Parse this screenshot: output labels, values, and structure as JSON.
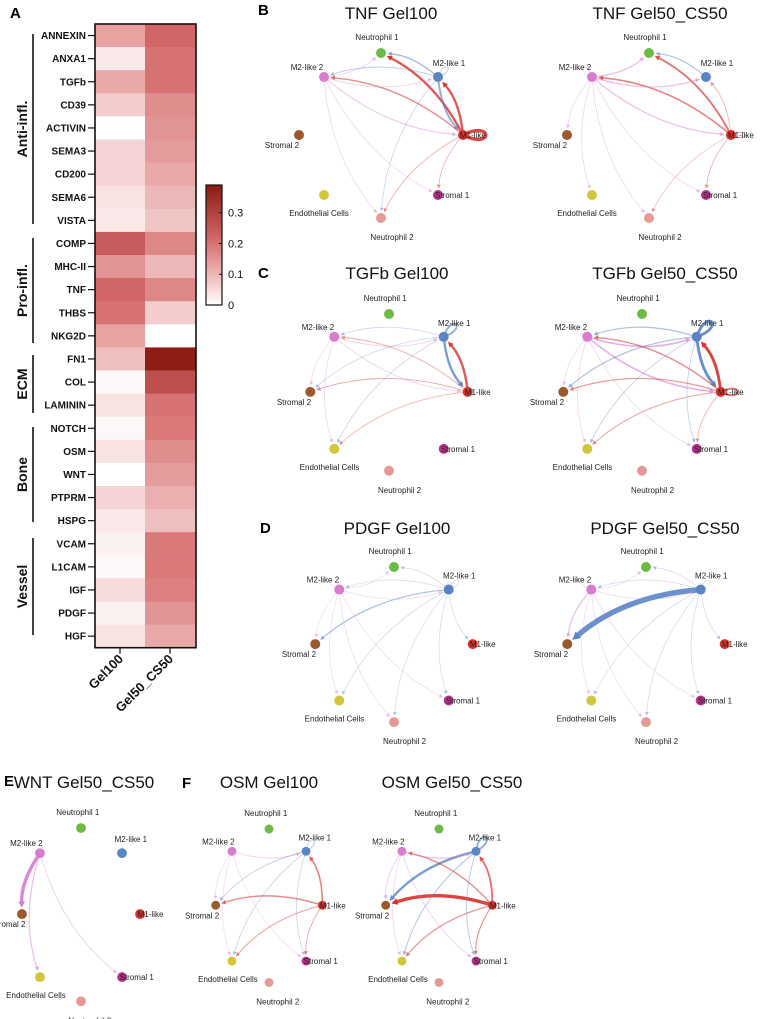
{
  "panel_letters": {
    "A": "A",
    "B": "B",
    "C": "C",
    "D": "D",
    "E": "E",
    "F": "F"
  },
  "chart_data": [
    {
      "type": "heatmap",
      "panel": "A",
      "columns": [
        "Gel100",
        "Gel50_CS50"
      ],
      "groups": [
        {
          "name": "Anti-infl.",
          "rows": [
            "ANNEXIN",
            "ANXA1",
            "TGFb",
            "CD39",
            "ACTIVIN",
            "SEMA3",
            "CD200",
            "SEMA6",
            "VISTA"
          ]
        },
        {
          "name": "Pro-infl.",
          "rows": [
            "COMP",
            "MHC-II",
            "TNF",
            "THBS",
            "NKG2D"
          ]
        },
        {
          "name": "ECM",
          "rows": [
            "FN1",
            "COL",
            "LAMININ"
          ]
        },
        {
          "name": "Bone",
          "rows": [
            "NOTCH",
            "OSM",
            "WNT",
            "PTPRM",
            "HSPG"
          ]
        },
        {
          "name": "Vessel",
          "rows": [
            "VCAM",
            "L1CAM",
            "IGF",
            "PDGF",
            "HGF"
          ]
        }
      ],
      "values": {
        "ANNEXIN": [
          0.13,
          0.22
        ],
        "ANXA1": [
          0.03,
          0.2
        ],
        "TGFb": [
          0.12,
          0.2
        ],
        "CD39": [
          0.07,
          0.16
        ],
        "ACTIVIN": [
          0.0,
          0.15
        ],
        "SEMA3": [
          0.06,
          0.14
        ],
        "CD200": [
          0.06,
          0.12
        ],
        "SEMA6": [
          0.04,
          0.1
        ],
        "VISTA": [
          0.03,
          0.08
        ],
        "COMP": [
          0.24,
          0.17
        ],
        "MHC-II": [
          0.15,
          0.1
        ],
        "TNF": [
          0.22,
          0.17
        ],
        "THBS": [
          0.2,
          0.07
        ],
        "NKG2D": [
          0.13,
          0.0
        ],
        "FN1": [
          0.09,
          0.38
        ],
        "COL": [
          0.01,
          0.27
        ],
        "LAMININ": [
          0.04,
          0.2
        ],
        "NOTCH": [
          0.01,
          0.19
        ],
        "OSM": [
          0.04,
          0.16
        ],
        "WNT": [
          0.0,
          0.14
        ],
        "PTPRM": [
          0.06,
          0.11
        ],
        "HSPG": [
          0.03,
          0.09
        ],
        "VCAM": [
          0.02,
          0.19
        ],
        "L1CAM": [
          0.01,
          0.19
        ],
        "IGF": [
          0.05,
          0.18
        ],
        "PDGF": [
          0.02,
          0.15
        ],
        "HGF": [
          0.04,
          0.12
        ]
      },
      "colorbar": {
        "min": 0,
        "max": 0.39,
        "ticks": [
          0,
          0.1,
          0.2,
          0.3
        ],
        "tick_labels": [
          "0",
          "0.1",
          "0.2",
          "0.3"
        ],
        "colors": [
          "#ffffff",
          "#e7a3a2",
          "#d4686a",
          "#8a1a0f"
        ]
      }
    },
    {
      "type": "network",
      "nodes": [
        {
          "id": "n1",
          "label": "Neutrophil 1",
          "color": "#6dbb47"
        },
        {
          "id": "m21",
          "label": "M2-like 1",
          "color": "#5a85c5"
        },
        {
          "id": "m22",
          "label": "M2-like 2",
          "color": "#d77ccf"
        },
        {
          "id": "m1",
          "label": "M1-like",
          "color": "#d8302b"
        },
        {
          "id": "s2",
          "label": "Stromal 2",
          "color": "#9a5a2e"
        },
        {
          "id": "s1",
          "label": "Stromal 1",
          "color": "#b9318f"
        },
        {
          "id": "endo",
          "label": "Endothelial Cells",
          "color": "#d3c63a"
        },
        {
          "id": "n2",
          "label": "Neutrophil 2",
          "color": "#e69a96"
        }
      ],
      "panels": [
        {
          "letter": "B",
          "title": "TNF Gel100",
          "edges": [
            [
              "m1",
              "n1",
              2
            ],
            [
              "m1",
              "m21",
              2
            ],
            [
              "m21",
              "m1",
              1.5
            ],
            [
              "m1",
              "m1",
              3
            ],
            [
              "m21",
              "m21",
              0.5
            ],
            [
              "m21",
              "n1",
              1
            ],
            [
              "m21",
              "m22",
              0.5
            ],
            [
              "m1",
              "m22",
              1
            ],
            [
              "m22",
              "m1",
              0.6
            ],
            [
              "m22",
              "m21",
              0.4
            ],
            [
              "m22",
              "n1",
              0.3
            ],
            [
              "m1",
              "s1",
              0.4
            ],
            [
              "m1",
              "n2",
              0.4
            ],
            [
              "m21",
              "n2",
              0.3
            ],
            [
              "m22",
              "s1",
              0.3
            ],
            [
              "m22",
              "n2",
              0.3
            ]
          ]
        },
        {
          "letter": "",
          "title": "TNF Gel50_CS50",
          "edges": [
            [
              "m1",
              "n1",
              1.5
            ],
            [
              "m1",
              "m22",
              1.2
            ],
            [
              "m22",
              "m1",
              0.8
            ],
            [
              "m22",
              "n1",
              0.8
            ],
            [
              "m22",
              "m21",
              0.8
            ],
            [
              "m21",
              "n1",
              0.8
            ],
            [
              "m22",
              "m22",
              0.4
            ],
            [
              "m1",
              "m1",
              0.6
            ],
            [
              "m1",
              "m21",
              0.4
            ],
            [
              "m22",
              "s2",
              0.3
            ],
            [
              "m22",
              "endo",
              0.3
            ],
            [
              "m22",
              "n2",
              0.3
            ],
            [
              "m22",
              "s1",
              0.3
            ],
            [
              "m1",
              "s1",
              0.4
            ],
            [
              "m1",
              "n2",
              0.3
            ]
          ]
        },
        {
          "letter": "C",
          "title": "TGFb Gel100",
          "edges": [
            [
              "m21",
              "m21",
              1.5
            ],
            [
              "m1",
              "m21",
              2
            ],
            [
              "m21",
              "m1",
              2
            ],
            [
              "m22",
              "m21",
              0.4
            ],
            [
              "m1",
              "m22",
              0.5
            ],
            [
              "m22",
              "m1",
              0.4
            ],
            [
              "m21",
              "m22",
              0.3
            ],
            [
              "m1",
              "s2",
              0.5
            ],
            [
              "m21",
              "s2",
              0.3
            ],
            [
              "m22",
              "s2",
              0.3
            ],
            [
              "m1",
              "endo",
              0.4
            ],
            [
              "m21",
              "endo",
              0.3
            ],
            [
              "m22",
              "endo",
              0.3
            ],
            [
              "m22",
              "m22",
              0.3
            ]
          ]
        },
        {
          "letter": "",
          "title": "TGFb Gel50_CS50",
          "edges": [
            [
              "m21",
              "m21",
              2.5
            ],
            [
              "m1",
              "m21",
              2.5
            ],
            [
              "m21",
              "m1",
              2.5
            ],
            [
              "m1",
              "m1",
              1.5
            ],
            [
              "m22",
              "m21",
              1.2
            ],
            [
              "m21",
              "m22",
              0.8
            ],
            [
              "m22",
              "m1",
              1.2
            ],
            [
              "m1",
              "m22",
              1
            ],
            [
              "m21",
              "s2",
              0.8
            ],
            [
              "m1",
              "s2",
              0.8
            ],
            [
              "m22",
              "s2",
              0.3
            ],
            [
              "m1",
              "endo",
              0.6
            ],
            [
              "m21",
              "endo",
              0.4
            ],
            [
              "m22",
              "endo",
              0.3
            ],
            [
              "m1",
              "s1",
              0.4
            ],
            [
              "m21",
              "s1",
              0.4
            ],
            [
              "m22",
              "s1",
              0.3
            ],
            [
              "m22",
              "m22",
              0.3
            ]
          ]
        },
        {
          "letter": "D",
          "title": "PDGF Gel100",
          "edges": [
            [
              "m21",
              "s2",
              0.8
            ],
            [
              "m21",
              "n1",
              0.2
            ],
            [
              "m21",
              "m22",
              0.2
            ],
            [
              "m21",
              "m1",
              0.2
            ],
            [
              "m21",
              "s1",
              0.2
            ],
            [
              "m21",
              "endo",
              0.2
            ],
            [
              "m21",
              "n2",
              0.2
            ],
            [
              "m22",
              "n1",
              0.2
            ],
            [
              "m22",
              "m21",
              0.2
            ],
            [
              "m22",
              "s2",
              0.2
            ],
            [
              "m22",
              "endo",
              0.2
            ],
            [
              "m22",
              "n2",
              0.2
            ],
            [
              "m22",
              "s1",
              0.2
            ],
            [
              "m21",
              "m21",
              0.2
            ],
            [
              "m22",
              "m22",
              0.2
            ]
          ]
        },
        {
          "letter": "",
          "title": "PDGF Gel50_CS50",
          "edges": [
            [
              "m21",
              "s2",
              5
            ],
            [
              "m22",
              "s2",
              0.8
            ],
            [
              "m21",
              "n1",
              0.2
            ],
            [
              "m21",
              "m22",
              0.2
            ],
            [
              "m21",
              "m1",
              0.2
            ],
            [
              "m21",
              "s1",
              0.2
            ],
            [
              "m21",
              "endo",
              0.2
            ],
            [
              "m21",
              "n2",
              0.2
            ],
            [
              "m22",
              "n1",
              0.2
            ],
            [
              "m22",
              "m21",
              0.2
            ],
            [
              "m22",
              "endo",
              0.2
            ],
            [
              "m22",
              "n2",
              0.2
            ],
            [
              "m22",
              "s1",
              0.2
            ],
            [
              "m21",
              "m21",
              0.2
            ],
            [
              "m22",
              "m22",
              0.2
            ]
          ]
        },
        {
          "letter": "E",
          "title": "WNT Gel50_CS50",
          "edges": [
            [
              "m22",
              "s2",
              3
            ],
            [
              "m22",
              "endo",
              0.8
            ],
            [
              "m22",
              "s1",
              0.4
            ]
          ]
        },
        {
          "letter": "F",
          "title": "OSM Gel100",
          "edges": [
            [
              "m1",
              "m21",
              1.2
            ],
            [
              "m1",
              "s2",
              1
            ],
            [
              "m1",
              "endo",
              0.6
            ],
            [
              "m1",
              "s1",
              0.5
            ],
            [
              "m21",
              "m21",
              0.5
            ],
            [
              "m22",
              "m21",
              0.4
            ],
            [
              "m21",
              "s2",
              0.4
            ],
            [
              "m21",
              "endo",
              0.3
            ],
            [
              "m21",
              "s1",
              0.3
            ],
            [
              "m22",
              "s2",
              0.2
            ],
            [
              "m22",
              "endo",
              0.2
            ],
            [
              "m22",
              "s1",
              0.2
            ]
          ]
        },
        {
          "letter": "",
          "title": "OSM Gel50_CS50",
          "edges": [
            [
              "m1",
              "s2",
              3
            ],
            [
              "m21",
              "s2",
              2
            ],
            [
              "m1",
              "m21",
              1.5
            ],
            [
              "m21",
              "m21",
              1.5
            ],
            [
              "m1",
              "m22",
              1
            ],
            [
              "m22",
              "m21",
              0.8
            ],
            [
              "m1",
              "endo",
              0.8
            ],
            [
              "m1",
              "s1",
              0.8
            ],
            [
              "m21",
              "endo",
              0.6
            ],
            [
              "m21",
              "s1",
              0.5
            ],
            [
              "m22",
              "s2",
              0.5
            ],
            [
              "m22",
              "endo",
              0.3
            ],
            [
              "m22",
              "s1",
              0.4
            ]
          ]
        }
      ]
    }
  ]
}
